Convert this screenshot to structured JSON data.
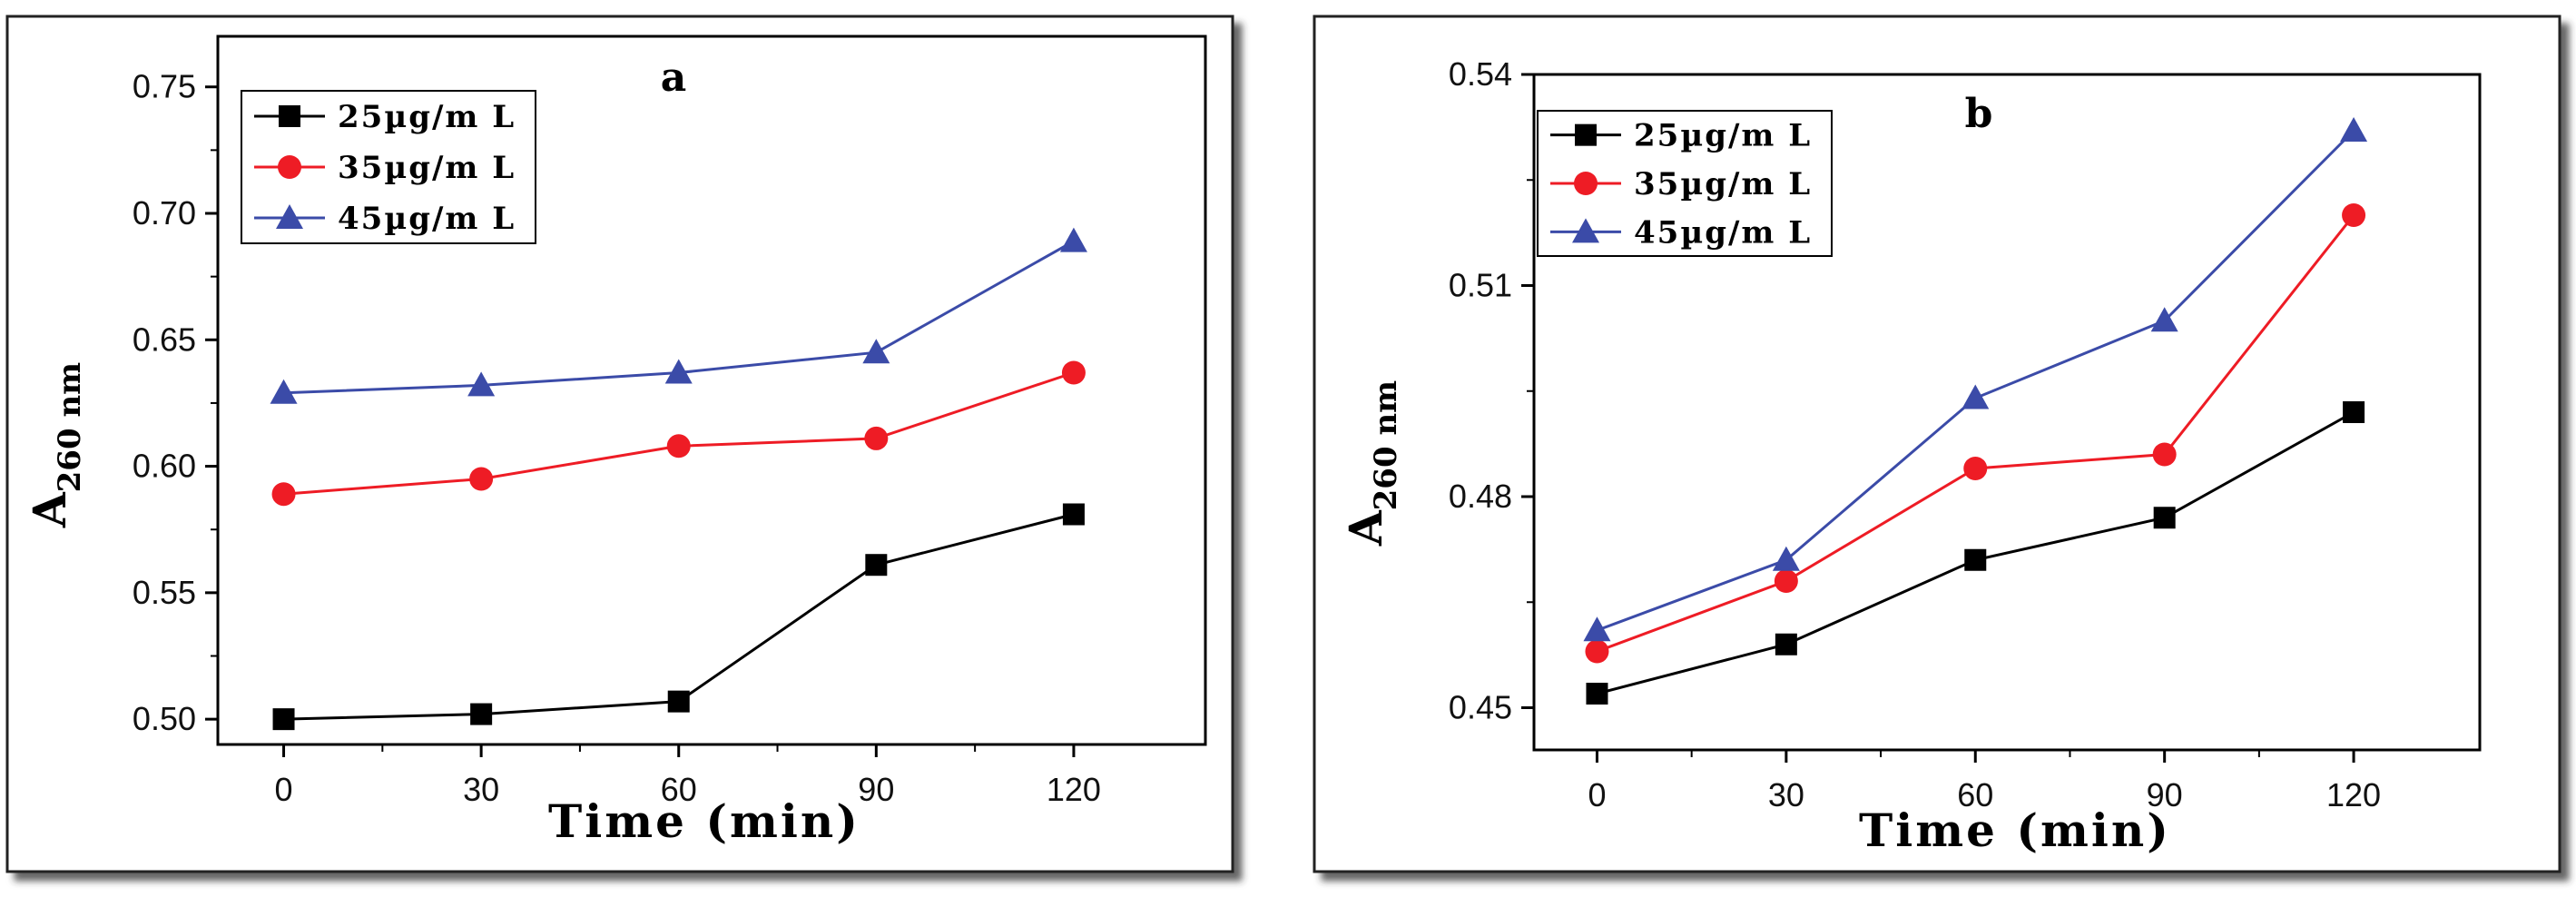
{
  "chart_data": [
    {
      "type": "line",
      "panel_label": "a",
      "xlabel": "Time (min)",
      "ylabel_main": "A",
      "ylabel_sub": "260 nm",
      "x": [
        0,
        30,
        60,
        90,
        120
      ],
      "x_tick_labels": [
        "0",
        "30",
        "60",
        "90",
        "120"
      ],
      "xlim": [
        -10,
        140
      ],
      "y_tick_values": [
        0.5,
        0.55,
        0.6,
        0.65,
        0.7,
        0.75
      ],
      "y_tick_labels": [
        "0.50",
        "0.55",
        "0.60",
        "0.65",
        "0.70",
        "0.75"
      ],
      "ylim": [
        0.49,
        0.77
      ],
      "legend_position": "top-left",
      "series": [
        {
          "name": "25µg/mL",
          "legend_label": "25µg/m L",
          "marker": "square",
          "color": "#000000",
          "values": [
            0.5,
            0.502,
            0.507,
            0.561,
            0.581
          ]
        },
        {
          "name": "35µg/mL",
          "legend_label": "35µg/m L",
          "marker": "circle",
          "color": "#ee1c25",
          "values": [
            0.589,
            0.595,
            0.608,
            0.611,
            0.637
          ]
        },
        {
          "name": "45µg/mL",
          "legend_label": "45µg/m L",
          "marker": "triangle",
          "color": "#3b4ba8",
          "values": [
            0.629,
            0.632,
            0.637,
            0.645,
            0.689
          ]
        }
      ]
    },
    {
      "type": "line",
      "panel_label": "b",
      "xlabel": "Time (min)",
      "ylabel_main": "A",
      "ylabel_sub": "260 nm",
      "x": [
        0,
        30,
        60,
        90,
        120
      ],
      "x_tick_labels": [
        "0",
        "30",
        "60",
        "90",
        "120"
      ],
      "xlim": [
        -10,
        140
      ],
      "y_tick_values": [
        0.45,
        0.48,
        0.51,
        0.54
      ],
      "y_tick_labels": [
        "0.45",
        "0.48",
        "0.51",
        "0.54"
      ],
      "ylim": [
        0.444,
        0.54
      ],
      "legend_position": "top-left",
      "series": [
        {
          "name": "25µg/mL",
          "legend_label": "25µg/m L",
          "marker": "square",
          "color": "#000000",
          "values": [
            0.452,
            0.459,
            0.471,
            0.477,
            0.492
          ]
        },
        {
          "name": "35µg/mL",
          "legend_label": "35µg/m L",
          "marker": "circle",
          "color": "#ee1c25",
          "values": [
            0.458,
            0.468,
            0.484,
            0.486,
            0.52
          ]
        },
        {
          "name": "45µg/mL",
          "legend_label": "45µg/m L",
          "marker": "triangle",
          "color": "#3b4ba8",
          "values": [
            0.461,
            0.471,
            0.494,
            0.505,
            0.532
          ]
        }
      ]
    }
  ]
}
